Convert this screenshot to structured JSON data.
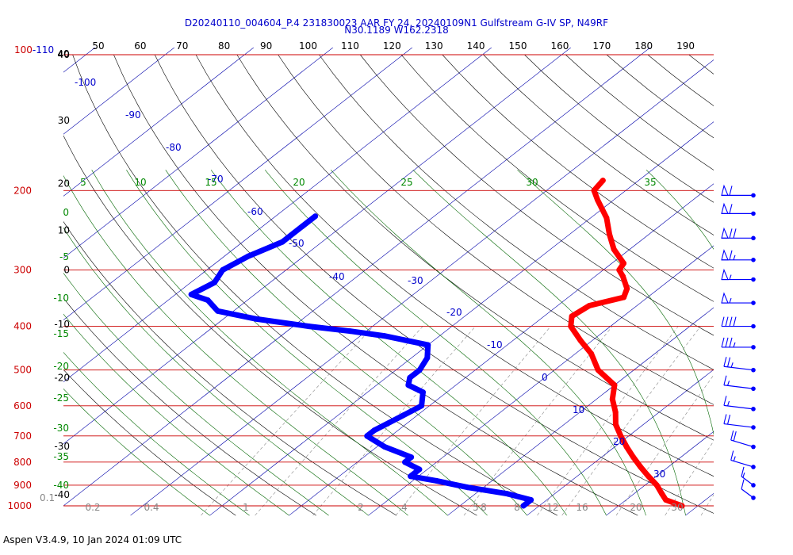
{
  "header": {
    "line1": "D20240110_004604_P.4 231830023 AAR FY 24, 20240109N1 Gulfstream G-IV SP, N49RF",
    "line2": "N30.1189 W162.2318"
  },
  "footer": {
    "text": "Aspen V3.4.9, 10 Jan 2024  01:09 UTC"
  },
  "chart_data": {
    "type": "skew-t log-p sounding",
    "pressure_ticks": [
      {
        "p": 100,
        "label": "100"
      },
      {
        "p": 200,
        "label": "200"
      },
      {
        "p": 300,
        "label": "300"
      },
      {
        "p": 400,
        "label": "400"
      },
      {
        "p": 500,
        "label": "500"
      },
      {
        "p": 600,
        "label": "600"
      },
      {
        "p": 700,
        "label": "700"
      },
      {
        "p": 800,
        "label": "800"
      },
      {
        "p": 900,
        "label": "900"
      },
      {
        "p": 1000,
        "label": "1000"
      }
    ],
    "pressure_prefix_label": "100-110",
    "top_axis_labels": [
      "50",
      "60",
      "70",
      "80",
      "90",
      "100",
      "110",
      "120",
      "130",
      "140",
      "150",
      "160",
      "170",
      "180",
      "190"
    ],
    "top_axis_first_label": "40",
    "height_labels": [
      {
        "label": "40",
        "p": 100
      },
      {
        "label": "30",
        "p": 140
      },
      {
        "label": "20",
        "p": 193
      },
      {
        "label": "10",
        "p": 245
      },
      {
        "label": "0",
        "p": 300
      },
      {
        "label": "-10",
        "p": 396
      },
      {
        "label": "-20",
        "p": 520
      },
      {
        "label": "-30",
        "p": 738
      },
      {
        "label": "-40",
        "p": 945
      }
    ],
    "isotherm_labels": [
      "-100",
      "-90",
      "-80",
      "-70",
      "-60",
      "-50",
      "-40",
      "-30",
      "-20",
      "-10",
      "0",
      "10",
      "20",
      "30"
    ],
    "mixing_ratio_labels": [
      "0.2",
      "0.4",
      "1",
      "2",
      "4",
      "5",
      "8",
      "8",
      "12",
      "16",
      "20",
      "30",
      "40"
    ],
    "mixing_ratio_prefix": "0.1",
    "theta_e_labels_top": [
      "5",
      "10",
      "15",
      "20",
      "25",
      "30",
      "35"
    ],
    "theta_e_labels_left": [
      "0",
      "-5",
      "-10",
      "-15",
      "-20",
      "-25",
      "-30",
      "-35",
      "-40"
    ],
    "temperature_C": [
      [
        190,
        -44.5
      ],
      [
        200,
        -44
      ],
      [
        210,
        -42
      ],
      [
        230,
        -38
      ],
      [
        250,
        -35
      ],
      [
        270,
        -32
      ],
      [
        290,
        -28.5
      ],
      [
        300,
        -28
      ],
      [
        310,
        -26.5
      ],
      [
        330,
        -24
      ],
      [
        345,
        -23
      ],
      [
        360,
        -26
      ],
      [
        380,
        -26.5
      ],
      [
        400,
        -25
      ],
      [
        430,
        -21.5
      ],
      [
        460,
        -18
      ],
      [
        500,
        -14.5
      ],
      [
        540,
        -10
      ],
      [
        580,
        -8
      ],
      [
        620,
        -5.5
      ],
      [
        660,
        -3.5
      ],
      [
        700,
        -1
      ],
      [
        740,
        1.5
      ],
      [
        780,
        4
      ],
      [
        820,
        6.5
      ],
      [
        860,
        9
      ],
      [
        900,
        11.5
      ],
      [
        940,
        13.5
      ],
      [
        970,
        15
      ],
      [
        1000,
        18
      ]
    ],
    "dewpoint_C": [
      [
        228,
        -75
      ],
      [
        240,
        -75
      ],
      [
        260,
        -75
      ],
      [
        280,
        -77
      ],
      [
        300,
        -78
      ],
      [
        320,
        -77
      ],
      [
        340,
        -78
      ],
      [
        350,
        -75
      ],
      [
        370,
        -72
      ],
      [
        385,
        -66
      ],
      [
        400,
        -58
      ],
      [
        410,
        -52
      ],
      [
        420,
        -47
      ],
      [
        440,
        -40
      ],
      [
        470,
        -38
      ],
      [
        500,
        -37
      ],
      [
        520,
        -37
      ],
      [
        540,
        -36
      ],
      [
        560,
        -33
      ],
      [
        600,
        -31
      ],
      [
        640,
        -32
      ],
      [
        680,
        -33
      ],
      [
        700,
        -33
      ],
      [
        740,
        -29
      ],
      [
        780,
        -24
      ],
      [
        800,
        -24
      ],
      [
        830,
        -21
      ],
      [
        860,
        -21
      ],
      [
        880,
        -17
      ],
      [
        910,
        -12
      ],
      [
        940,
        -6
      ],
      [
        970,
        -2
      ],
      [
        1000,
        -2
      ]
    ],
    "wind_barbs": [
      {
        "p": 205,
        "dir": "W",
        "speed_kt": 60
      },
      {
        "p": 225,
        "dir": "W",
        "speed_kt": 60
      },
      {
        "p": 255,
        "dir": "W",
        "speed_kt": 70
      },
      {
        "p": 285,
        "dir": "W",
        "speed_kt": 65
      },
      {
        "p": 315,
        "dir": "W",
        "speed_kt": 55
      },
      {
        "p": 355,
        "dir": "W",
        "speed_kt": 55
      },
      {
        "p": 400,
        "dir": "W",
        "speed_kt": 40
      },
      {
        "p": 445,
        "dir": "W",
        "speed_kt": 35
      },
      {
        "p": 500,
        "dir": "WNW",
        "speed_kt": 25
      },
      {
        "p": 550,
        "dir": "WNW",
        "speed_kt": 15
      },
      {
        "p": 610,
        "dir": "WNW",
        "speed_kt": 15
      },
      {
        "p": 670,
        "dir": "WNW",
        "speed_kt": 20
      },
      {
        "p": 740,
        "dir": "NW",
        "speed_kt": 20
      },
      {
        "p": 820,
        "dir": "NW",
        "speed_kt": 15
      },
      {
        "p": 900,
        "dir": "NNW",
        "speed_kt": 15
      },
      {
        "p": 960,
        "dir": "NNW",
        "speed_kt": 10
      }
    ],
    "colors": {
      "temperature": "#ff0000",
      "dewpoint": "#0000ff",
      "isobar": "#cc0000",
      "isotherm": "#0000aa",
      "dry_adiabat": "#000000",
      "moist_adiabat": "#006600",
      "mixing_ratio": "#888888"
    }
  }
}
